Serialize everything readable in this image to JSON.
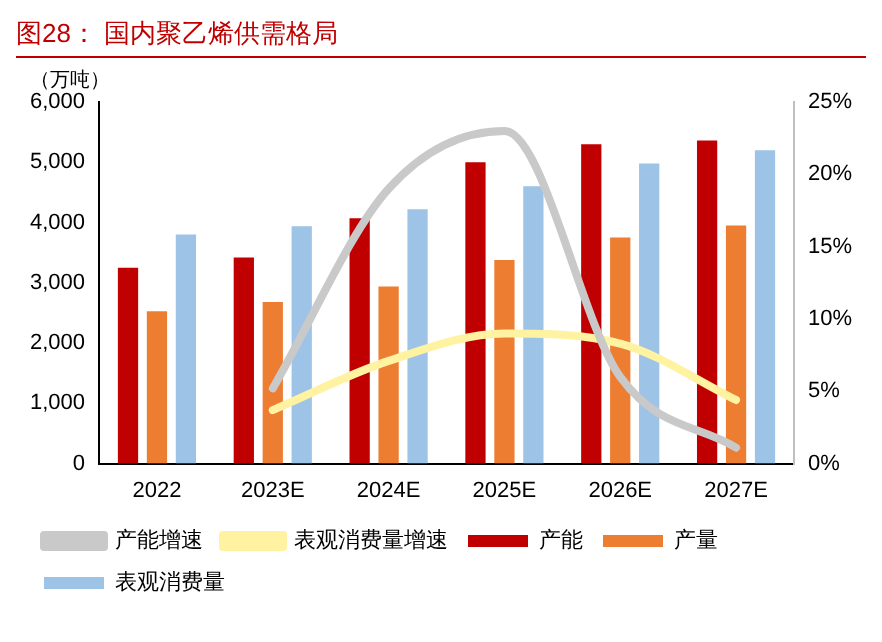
{
  "chart_data": {
    "type": "bar",
    "title": "图28： 国内聚乙烯供需格局",
    "ylabel": "（万吨）",
    "categories": [
      "2022",
      "2023E",
      "2024E",
      "2025E",
      "2026E",
      "2027E"
    ],
    "series": [
      {
        "name": "产能",
        "color": "#c00000",
        "values": [
          3250,
          3420,
          4070,
          5000,
          5300,
          5360
        ]
      },
      {
        "name": "产量",
        "color": "#ed7d31",
        "values": [
          2530,
          2680,
          2940,
          3380,
          3750,
          3950
        ]
      },
      {
        "name": "表观消费量",
        "color": "#9dc3e6",
        "values": [
          3800,
          3940,
          4220,
          4600,
          4980,
          5200
        ]
      },
      {
        "name": "产能增速",
        "type": "line",
        "axis": "y2",
        "color": "#c9c9c9",
        "values": [
          null,
          5.2,
          19,
          23,
          6,
          1.1
        ]
      },
      {
        "name": "表观消费量增速",
        "type": "line",
        "axis": "y2",
        "color": "#fff2a0",
        "values": [
          null,
          3.7,
          7.1,
          9,
          8.3,
          4.4
        ]
      }
    ],
    "ylim": [
      0,
      6000
    ],
    "yticks": [
      0,
      {
        "value": 1000,
        "label": "1,000"
      },
      {
        "value": 2000,
        "label": "2,000"
      },
      {
        "value": 3000,
        "label": "3,000"
      },
      {
        "value": 4000,
        "label": "4,000"
      },
      {
        "value": 5000,
        "label": "5,000"
      },
      {
        "value": 6000,
        "label": "6,000"
      }
    ],
    "y2lim": [
      0,
      25
    ],
    "y2ticks": [
      {
        "value": 0,
        "label": "0%"
      },
      {
        "value": 5,
        "label": "5%"
      },
      {
        "value": 10,
        "label": "10%"
      },
      {
        "value": 15,
        "label": "15%"
      },
      {
        "value": 20,
        "label": "20%"
      },
      {
        "value": 25,
        "label": "25%"
      }
    ],
    "grid": false,
    "legend": "bottom",
    "marker": "none"
  }
}
